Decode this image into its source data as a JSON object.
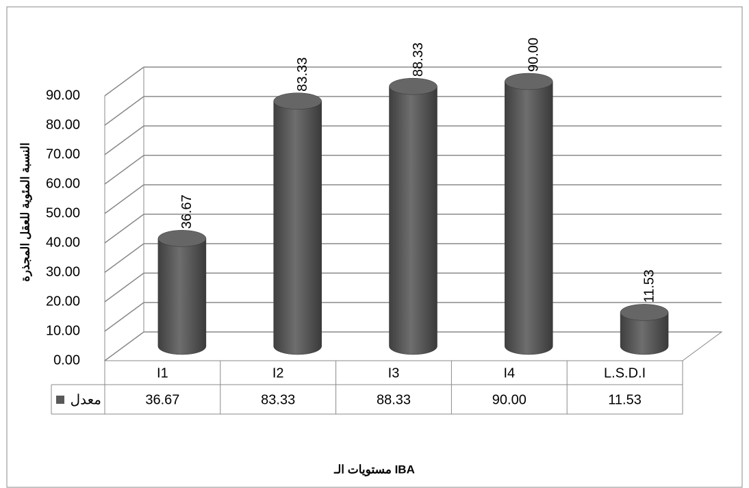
{
  "chart_data": {
    "type": "bar",
    "y_label": "النسبة المئوية للعقل المجذرة",
    "x_label": "مستويات الـ IBA",
    "categories": [
      "I1",
      "I2",
      "I3",
      "I4",
      "L.S.D.I"
    ],
    "series": [
      {
        "name": "معدل",
        "color": "#595959",
        "values": [
          36.67,
          83.33,
          88.33,
          90,
          11.53
        ],
        "value_labels": [
          "36.67",
          "83.33",
          "88.33",
          "90.00",
          "11.53"
        ]
      }
    ],
    "ylim": [
      0,
      90
    ],
    "yticks": [
      {
        "value": 0,
        "label": "0.00"
      },
      {
        "value": 10,
        "label": "10.00"
      },
      {
        "value": 20,
        "label": "20.00"
      },
      {
        "value": 30,
        "label": "30.00"
      },
      {
        "value": 40,
        "label": "40.00"
      },
      {
        "value": 50,
        "label": "50.00"
      },
      {
        "value": 60,
        "label": "60.00"
      },
      {
        "value": 70,
        "label": "70.00"
      },
      {
        "value": 80,
        "label": "80.00"
      },
      {
        "value": 90,
        "label": "90.00"
      }
    ],
    "grid": true
  }
}
